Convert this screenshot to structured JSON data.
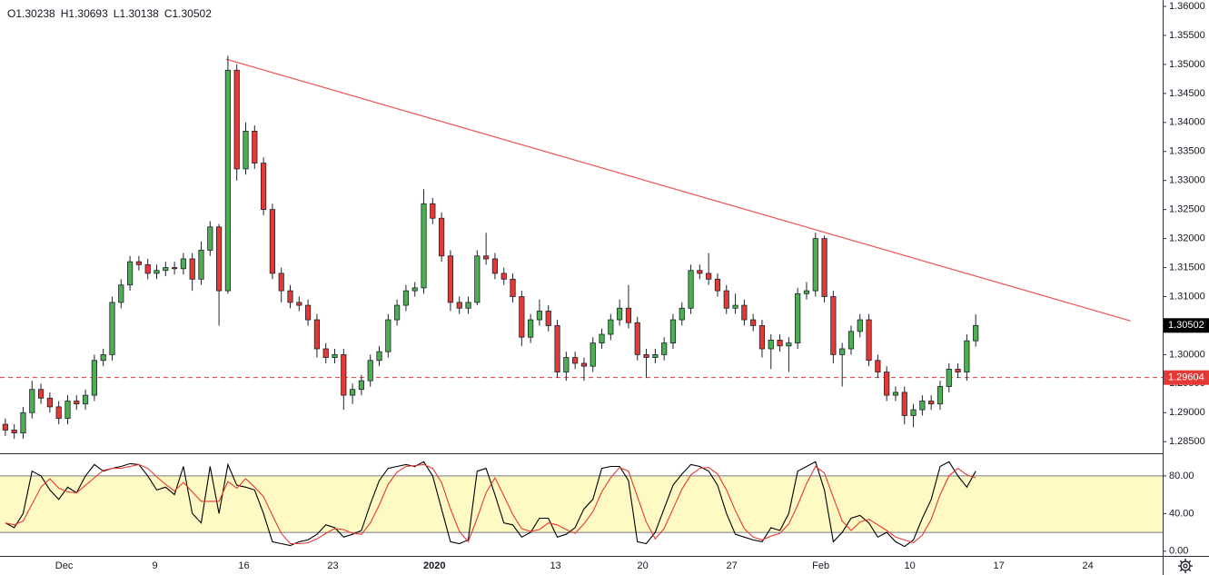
{
  "chart_data": [
    {
      "type": "candlestick",
      "header": [
        "O1.30238",
        "H1.30693",
        "L1.30138",
        "C1.30502"
      ],
      "x": [
        -3.3,
        -2.8,
        -2.3,
        -1.8,
        -1.3,
        -0.8,
        -0.3,
        0.2,
        0.7,
        1.2,
        1.7,
        2.2,
        2.7,
        3.2,
        3.7,
        4.2,
        4.7,
        5.2,
        5.7,
        6.2,
        6.7,
        7.2,
        7.7,
        8.2,
        8.7,
        9.2,
        9.7,
        10.2,
        10.7,
        11.2,
        11.7,
        12.2,
        12.7,
        13.2,
        13.7,
        14.2,
        14.7,
        15.2,
        15.7,
        16.2,
        16.7,
        17.2,
        17.7,
        18.2,
        18.7,
        19.2,
        19.7,
        20.2,
        20.7,
        21.2,
        21.7,
        22.2,
        22.7,
        23.2,
        23.7,
        24.2,
        24.7,
        25.2,
        25.7,
        26.2,
        26.7,
        27.2,
        27.7,
        28.2,
        28.7,
        29.2,
        29.7,
        30.2,
        30.7,
        31.2,
        31.7,
        32.2,
        32.7,
        33.2,
        33.7,
        34.2,
        34.7,
        35.2,
        35.7,
        36.2,
        36.7,
        37.2,
        37.7,
        38.2,
        38.7,
        39.2,
        39.7,
        40.2,
        40.7,
        41.2,
        41.7,
        42.2,
        42.7,
        43.2,
        43.7,
        44.2,
        44.7,
        45.2,
        45.7,
        46.2,
        46.7,
        47.2,
        47.7,
        48.2,
        48.7,
        49.2,
        49.7,
        50.2,
        50.7,
        51.2
      ],
      "open": [
        1.288,
        1.287,
        1.2865,
        1.29,
        1.294,
        1.2925,
        1.291,
        1.289,
        1.292,
        1.2915,
        1.293,
        1.299,
        1.3,
        1.309,
        1.312,
        1.316,
        1.3155,
        1.314,
        1.3145,
        1.315,
        1.3148,
        1.3165,
        1.313,
        1.318,
        1.322,
        1.311,
        1.349,
        1.332,
        1.3385,
        1.333,
        1.325,
        1.314,
        1.311,
        1.309,
        1.3085,
        1.306,
        1.301,
        1.2995,
        1.3,
        1.293,
        1.294,
        1.2955,
        1.299,
        1.3005,
        1.306,
        1.3085,
        1.311,
        1.3115,
        1.326,
        1.3235,
        1.317,
        1.309,
        1.308,
        1.309,
        1.317,
        1.3165,
        1.314,
        1.313,
        1.31,
        1.303,
        1.306,
        1.3075,
        1.305,
        1.297,
        1.2995,
        1.2985,
        1.298,
        1.302,
        1.3035,
        1.306,
        1.308,
        1.3055,
        1.3,
        1.2995,
        1.3,
        1.302,
        1.306,
        1.308,
        1.3145,
        1.314,
        1.313,
        1.311,
        1.308,
        1.3085,
        1.306,
        1.305,
        1.301,
        1.3025,
        1.3015,
        1.302,
        1.3105,
        1.311,
        1.32,
        1.31,
        1.3,
        1.301,
        1.304,
        1.306,
        1.299,
        1.297,
        1.293,
        1.2935,
        1.2895,
        1.2905,
        1.292,
        1.2915,
        1.2945,
        1.2975,
        1.297,
        1.30238
      ],
      "high": [
        1.289,
        1.288,
        1.291,
        1.2955,
        1.295,
        1.2935,
        1.292,
        1.293,
        1.293,
        1.294,
        1.3,
        1.301,
        1.31,
        1.313,
        1.317,
        1.317,
        1.3165,
        1.3155,
        1.316,
        1.316,
        1.3175,
        1.3175,
        1.3195,
        1.323,
        1.3225,
        1.3515,
        1.35,
        1.34,
        1.3395,
        1.334,
        1.326,
        1.315,
        1.312,
        1.31,
        1.3095,
        1.307,
        1.302,
        1.301,
        1.301,
        1.295,
        1.2965,
        1.3,
        1.3015,
        1.307,
        1.3095,
        1.312,
        1.3125,
        1.3285,
        1.327,
        1.3245,
        1.318,
        1.31,
        1.31,
        1.318,
        1.321,
        1.3175,
        1.315,
        1.314,
        1.311,
        1.307,
        1.3095,
        1.3085,
        1.306,
        1.3005,
        1.3005,
        1.2995,
        1.303,
        1.3045,
        1.307,
        1.3095,
        1.312,
        1.3065,
        1.301,
        1.301,
        1.303,
        1.307,
        1.309,
        1.3155,
        1.3155,
        1.3175,
        1.314,
        1.312,
        1.3105,
        1.3095,
        1.307,
        1.306,
        1.3035,
        1.3035,
        1.303,
        1.3115,
        1.3125,
        1.321,
        1.3205,
        1.311,
        1.302,
        1.305,
        1.307,
        1.307,
        1.3,
        1.298,
        1.2945,
        1.2945,
        1.2915,
        1.293,
        1.293,
        1.2955,
        1.2985,
        1.2985,
        1.3035,
        1.30693
      ],
      "low": [
        1.286,
        1.2855,
        1.2855,
        1.289,
        1.2915,
        1.29,
        1.288,
        1.288,
        1.2905,
        1.2905,
        1.292,
        1.298,
        1.299,
        1.308,
        1.311,
        1.3145,
        1.313,
        1.313,
        1.3135,
        1.3138,
        1.3138,
        1.311,
        1.312,
        1.317,
        1.305,
        1.3105,
        1.33,
        1.331,
        1.332,
        1.324,
        1.313,
        1.309,
        1.308,
        1.3075,
        1.305,
        1.2995,
        1.2985,
        1.2985,
        1.2905,
        1.2915,
        1.293,
        1.2945,
        1.298,
        1.2995,
        1.305,
        1.3075,
        1.31,
        1.3105,
        1.3225,
        1.316,
        1.3075,
        1.307,
        1.307,
        1.3085,
        1.3155,
        1.313,
        1.312,
        1.309,
        1.3015,
        1.302,
        1.305,
        1.304,
        1.296,
        1.2955,
        1.2975,
        1.2955,
        1.297,
        1.301,
        1.3025,
        1.305,
        1.3045,
        1.299,
        1.296,
        1.2985,
        1.299,
        1.301,
        1.305,
        1.307,
        1.313,
        1.312,
        1.31,
        1.307,
        1.307,
        1.305,
        1.304,
        1.2995,
        1.2975,
        1.3005,
        1.297,
        1.301,
        1.3095,
        1.31,
        1.309,
        1.2985,
        1.2945,
        1.3,
        1.303,
        1.298,
        1.296,
        1.292,
        1.292,
        1.288,
        1.2875,
        1.2895,
        1.2905,
        1.2905,
        1.2935,
        1.296,
        1.2955,
        1.30138
      ],
      "close": [
        1.287,
        1.2865,
        1.29,
        1.294,
        1.2925,
        1.291,
        1.289,
        1.292,
        1.2915,
        1.293,
        1.299,
        1.3,
        1.309,
        1.312,
        1.316,
        1.3155,
        1.314,
        1.3145,
        1.315,
        1.3148,
        1.3165,
        1.313,
        1.318,
        1.322,
        1.311,
        1.349,
        1.332,
        1.3385,
        1.333,
        1.325,
        1.314,
        1.311,
        1.309,
        1.3085,
        1.306,
        1.301,
        1.2995,
        1.3,
        1.293,
        1.294,
        1.2955,
        1.299,
        1.3005,
        1.306,
        1.3085,
        1.311,
        1.3115,
        1.326,
        1.3235,
        1.317,
        1.309,
        1.308,
        1.309,
        1.317,
        1.3165,
        1.314,
        1.313,
        1.31,
        1.303,
        1.306,
        1.3075,
        1.305,
        1.297,
        1.2995,
        1.2985,
        1.298,
        1.302,
        1.3035,
        1.306,
        1.308,
        1.3055,
        1.3,
        1.2995,
        1.3,
        1.302,
        1.306,
        1.308,
        1.3145,
        1.314,
        1.313,
        1.311,
        1.308,
        1.3085,
        1.306,
        1.305,
        1.301,
        1.3025,
        1.3015,
        1.302,
        1.3105,
        1.311,
        1.32,
        1.31,
        1.3,
        1.301,
        1.304,
        1.306,
        1.299,
        1.297,
        1.293,
        1.2935,
        1.2895,
        1.2905,
        1.292,
        1.2915,
        1.2945,
        1.2975,
        1.297,
        1.30238,
        1.30502
      ],
      "up_color": "#4caf50",
      "down_color": "#e53935",
      "outline_color": "#1e222d",
      "xlim": [
        -3.6,
        61.7
      ],
      "xticks": [
        {
          "value": 0,
          "label": "Dec"
        },
        {
          "value": 5.1,
          "label": "9"
        },
        {
          "value": 10.1,
          "label": "16"
        },
        {
          "value": 15.1,
          "label": "23"
        },
        {
          "value": 20.8,
          "label": "2020"
        },
        {
          "value": 27.6,
          "label": "13"
        },
        {
          "value": 32.5,
          "label": "20"
        },
        {
          "value": 37.5,
          "label": "27"
        },
        {
          "value": 42.5,
          "label": "Feb"
        },
        {
          "value": 47.5,
          "label": "10"
        },
        {
          "value": 52.5,
          "label": "17"
        },
        {
          "value": 57.5,
          "label": "24"
        }
      ],
      "ylim": [
        1.283,
        1.3611
      ],
      "yticks": [
        {
          "value": 1.36,
          "label": "1.36000"
        },
        {
          "value": 1.355,
          "label": "1.35500"
        },
        {
          "value": 1.35,
          "label": "1.35000"
        },
        {
          "value": 1.345,
          "label": "1.34500"
        },
        {
          "value": 1.34,
          "label": "1.34000"
        },
        {
          "value": 1.335,
          "label": "1.33500"
        },
        {
          "value": 1.33,
          "label": "1.33000"
        },
        {
          "value": 1.325,
          "label": "1.32500"
        },
        {
          "value": 1.32,
          "label": "1.32000"
        },
        {
          "value": 1.315,
          "label": "1.31500"
        },
        {
          "value": 1.31,
          "label": "1.31000"
        },
        {
          "value": 1.305,
          "label": "1.30500"
        },
        {
          "value": 1.3,
          "label": "1.30000"
        },
        {
          "value": 1.295,
          "label": "1.29500"
        },
        {
          "value": 1.29,
          "label": "1.29000"
        },
        {
          "value": 1.285,
          "label": "1.28500"
        }
      ],
      "grid": false,
      "trendline": {
        "x": [
          9.1,
          59.9
        ],
        "y": [
          1.3509,
          1.3058
        ],
        "color": "#ef5350"
      },
      "hline": {
        "value": 1.29604,
        "color": "#e53935"
      },
      "last_price_color": "#000000"
    },
    {
      "type": "line",
      "x": [
        -3.3,
        -2.8,
        -2.3,
        -1.8,
        -1.3,
        -0.8,
        -0.3,
        0.2,
        0.7,
        1.2,
        1.7,
        2.2,
        2.7,
        3.2,
        3.7,
        4.2,
        4.7,
        5.2,
        5.7,
        6.2,
        6.7,
        7.2,
        7.7,
        8.2,
        8.7,
        9.2,
        9.7,
        10.2,
        10.7,
        11.2,
        11.7,
        12.2,
        12.7,
        13.2,
        13.7,
        14.2,
        14.7,
        15.2,
        15.7,
        16.2,
        16.7,
        17.2,
        17.7,
        18.2,
        18.7,
        19.2,
        19.7,
        20.2,
        20.7,
        21.2,
        21.7,
        22.2,
        22.7,
        23.2,
        23.7,
        24.2,
        24.7,
        25.2,
        25.7,
        26.2,
        26.7,
        27.2,
        27.7,
        28.2,
        28.7,
        29.2,
        29.7,
        30.2,
        30.7,
        31.2,
        31.7,
        32.2,
        32.7,
        33.2,
        33.7,
        34.2,
        34.7,
        35.2,
        35.7,
        36.2,
        36.7,
        37.2,
        37.7,
        38.2,
        38.7,
        39.2,
        39.7,
        40.2,
        40.7,
        41.2,
        41.7,
        42.2,
        42.7,
        43.2,
        43.7,
        44.2,
        44.7,
        45.2,
        45.7,
        46.2,
        46.7,
        47.2,
        47.7,
        48.2,
        48.7,
        49.2,
        49.7,
        50.2,
        50.7,
        51.2
      ],
      "series": [
        {
          "color": "#000000",
          "values": [
            30,
            25,
            40,
            85,
            80,
            65,
            55,
            68,
            62,
            80,
            92,
            85,
            88,
            90,
            93,
            92,
            80,
            65,
            68,
            60,
            90,
            40,
            30,
            90,
            40,
            92,
            70,
            68,
            65,
            40,
            10,
            8,
            6,
            10,
            12,
            18,
            28,
            25,
            15,
            18,
            22,
            50,
            75,
            88,
            90,
            92,
            90,
            95,
            80,
            45,
            10,
            8,
            12,
            85,
            88,
            60,
            30,
            28,
            15,
            20,
            35,
            35,
            15,
            18,
            25,
            45,
            55,
            88,
            90,
            90,
            75,
            10,
            8,
            20,
            45,
            70,
            82,
            92,
            90,
            85,
            70,
            40,
            18,
            15,
            12,
            10,
            25,
            22,
            40,
            85,
            90,
            95,
            65,
            10,
            20,
            35,
            38,
            30,
            15,
            20,
            10,
            5,
            12,
            35,
            55,
            90,
            95,
            80,
            68,
            85
          ]
        },
        {
          "color": "#e53935",
          "values": [
            30,
            28,
            32,
            50,
            68,
            77,
            67,
            63,
            62,
            70,
            78,
            86,
            88,
            88,
            90,
            92,
            88,
            79,
            71,
            64,
            73,
            63,
            53,
            53,
            53,
            74,
            67,
            77,
            68,
            58,
            38,
            19,
            8,
            8,
            9,
            13,
            19,
            24,
            23,
            19,
            18,
            30,
            49,
            71,
            84,
            90,
            91,
            92,
            88,
            73,
            45,
            21,
            10,
            35,
            62,
            78,
            59,
            39,
            24,
            21,
            23,
            30,
            28,
            23,
            19,
            29,
            42,
            63,
            78,
            89,
            85,
            58,
            31,
            13,
            24,
            45,
            66,
            81,
            88,
            89,
            82,
            65,
            43,
            24,
            15,
            12,
            16,
            19,
            29,
            49,
            72,
            90,
            83,
            57,
            32,
            22,
            31,
            34,
            28,
            22,
            15,
            12,
            9,
            17,
            34,
            60,
            80,
            88,
            81,
            78
          ]
        }
      ],
      "band": [
        20,
        80
      ],
      "band_color": "#fff9c4",
      "xlim": [
        -3.6,
        61.7
      ],
      "ylim": [
        -5,
        104
      ],
      "yticks": [
        {
          "value": 80,
          "label": "80.00"
        },
        {
          "value": 40,
          "label": "40.00"
        },
        {
          "value": 0,
          "label": "0.00"
        }
      ]
    }
  ]
}
